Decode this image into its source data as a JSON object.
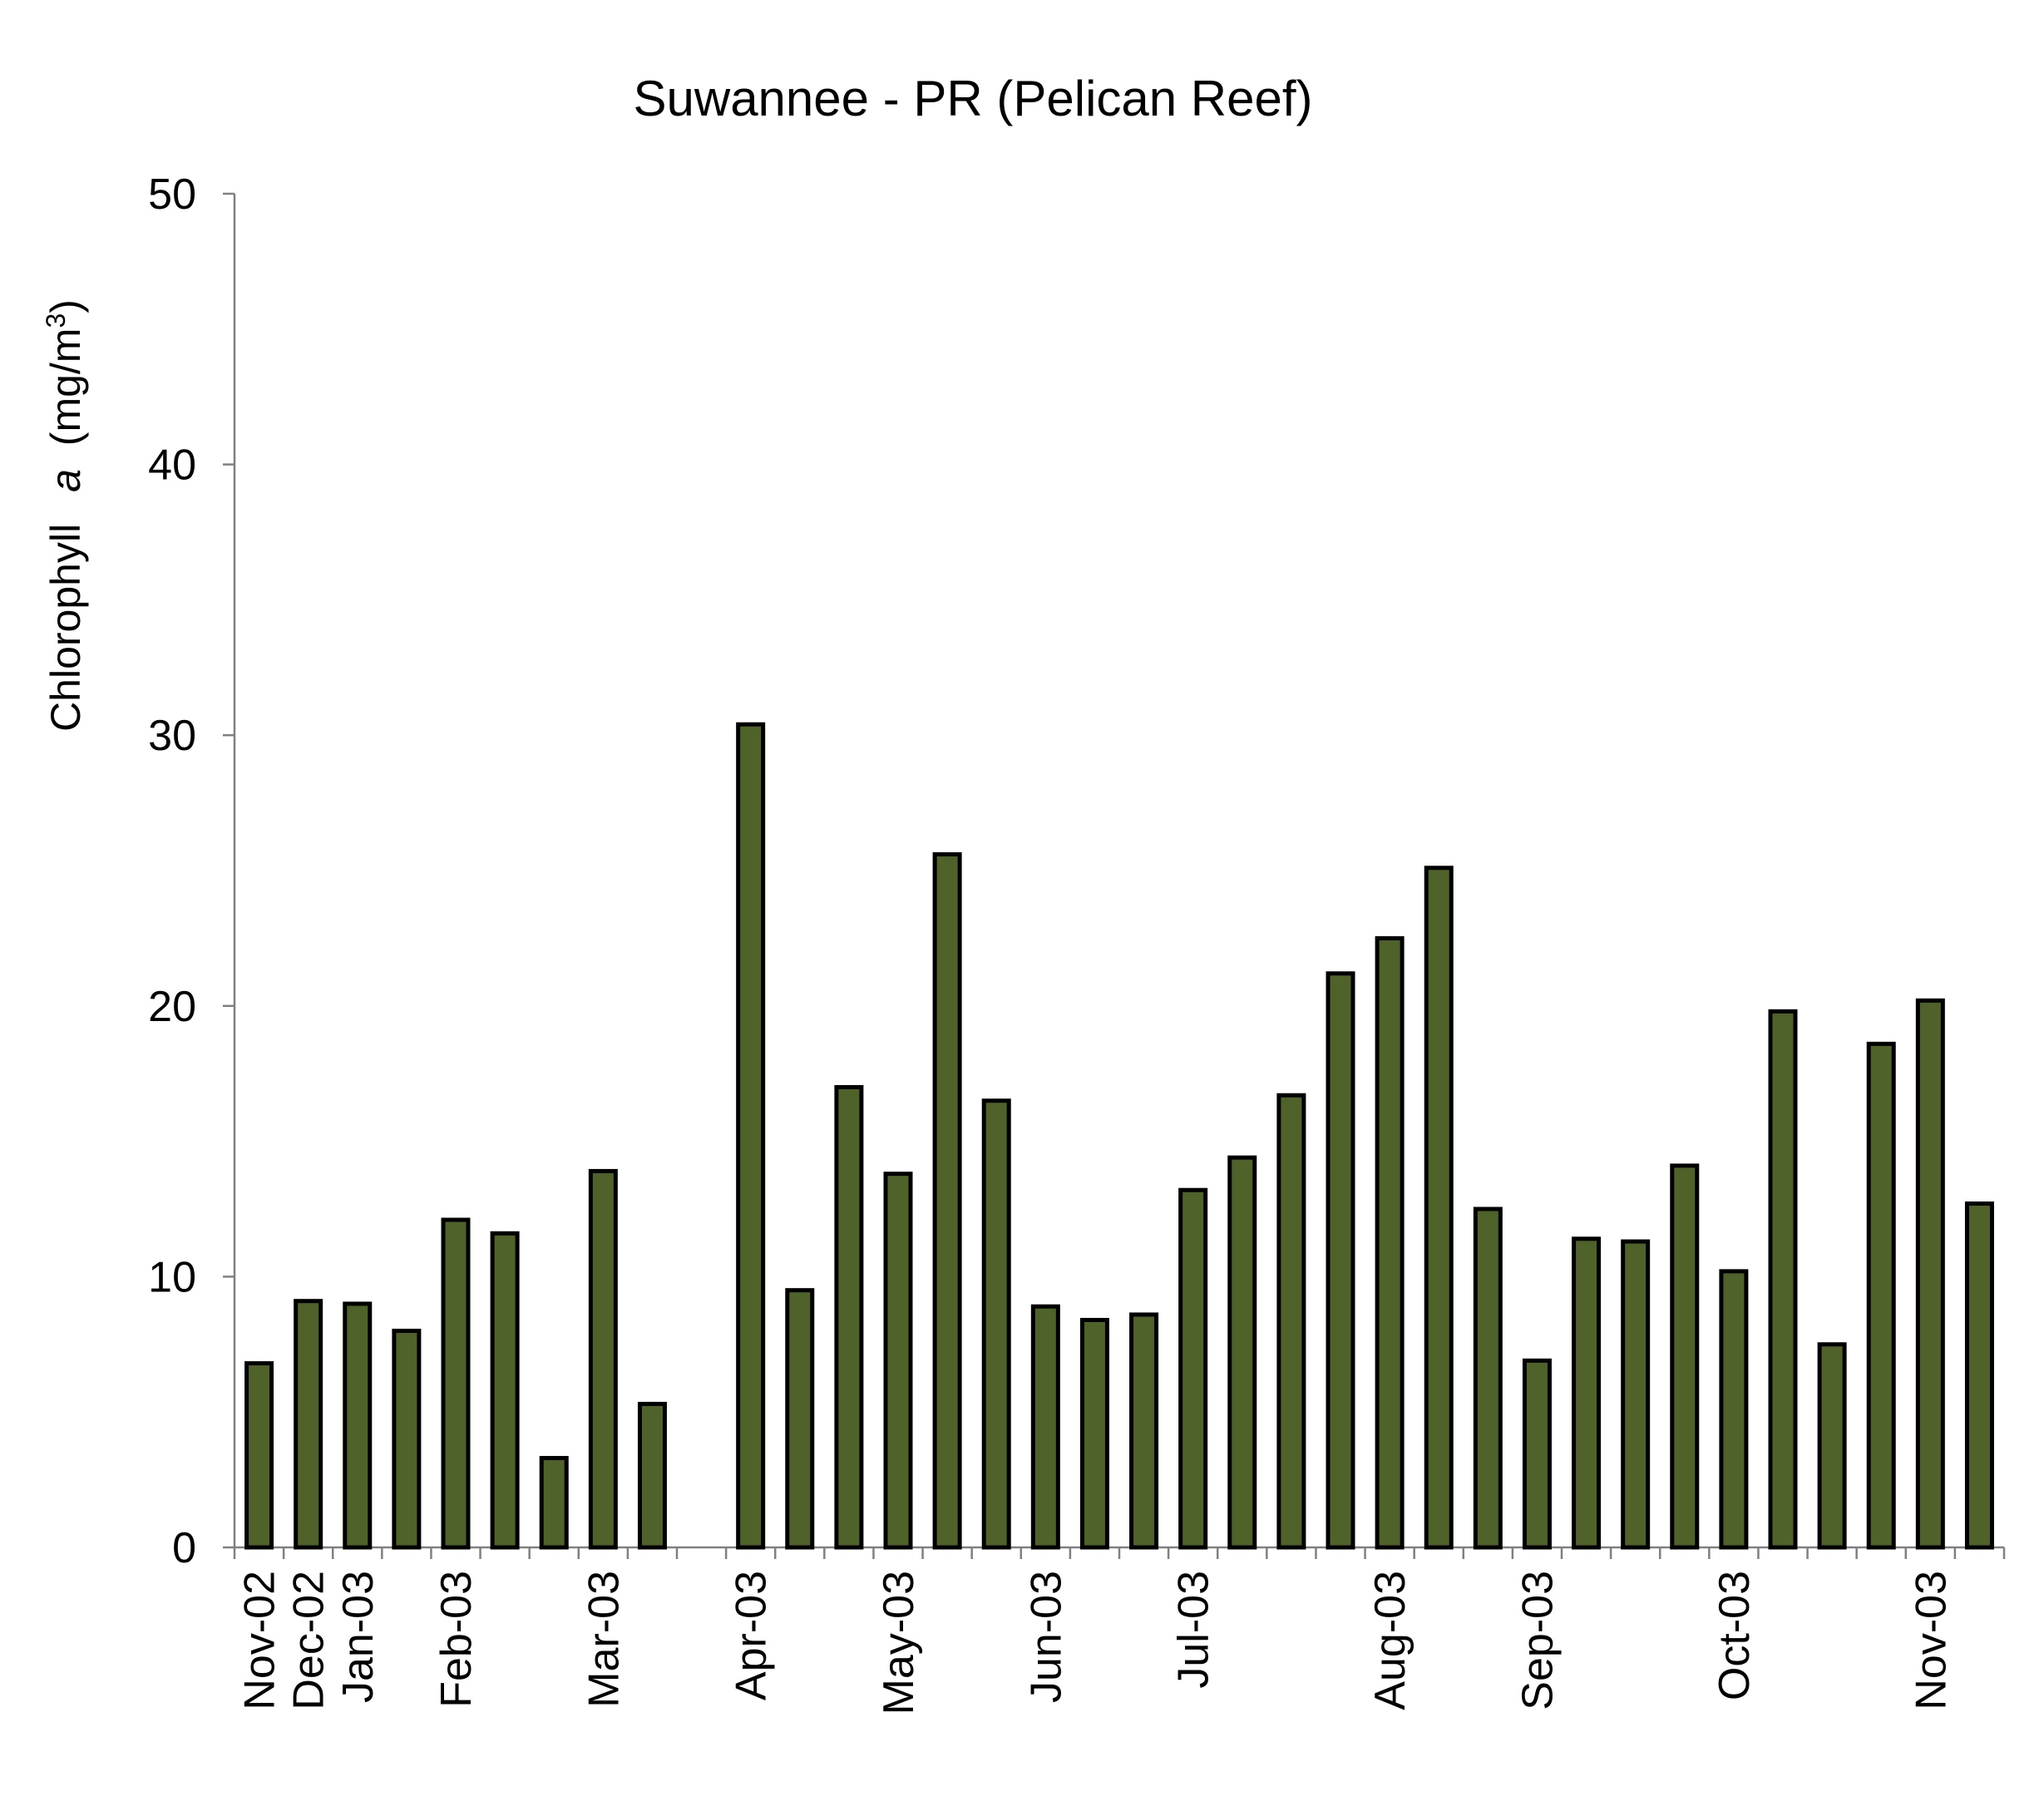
{
  "chart_data": {
    "type": "bar",
    "title": "Suwannee - PR (Pelican Reef)",
    "ylabel": {
      "prefix": "Chlorophyll",
      "italic": "a",
      "unit_start": "(mg/m",
      "sup": "3",
      "unit_end": ")"
    },
    "ylim": [
      0,
      50
    ],
    "yticks": [
      0,
      10,
      20,
      30,
      40,
      50
    ],
    "grid": false,
    "colors": {
      "bar_fill": "#4f622a",
      "bar_stroke": "#000000",
      "axis": "#808080"
    },
    "slots": 36,
    "values": [
      6.8,
      9.1,
      9.0,
      8.0,
      12.1,
      11.6,
      3.3,
      13.9,
      5.3,
      null,
      30.4,
      9.5,
      17.0,
      13.8,
      25.6,
      16.5,
      8.9,
      8.4,
      8.6,
      13.2,
      14.4,
      16.7,
      21.2,
      22.5,
      25.1,
      12.5,
      6.9,
      11.4,
      11.3,
      14.1,
      10.2,
      19.8,
      7.5,
      18.6,
      20.2,
      12.7
    ],
    "date_labels": [
      {
        "slot": 0,
        "text": "Nov-02"
      },
      {
        "slot": 1,
        "text": "Dec-02"
      },
      {
        "slot": 2,
        "text": "Jan-03"
      },
      {
        "slot": 4,
        "text": "Feb-03"
      },
      {
        "slot": 7,
        "text": "Mar-03"
      },
      {
        "slot": 10,
        "text": "Apr-03"
      },
      {
        "slot": 13,
        "text": "May-03"
      },
      {
        "slot": 16,
        "text": "Jun-03"
      },
      {
        "slot": 19,
        "text": "Jul-03"
      },
      {
        "slot": 23,
        "text": "Aug-03"
      },
      {
        "slot": 26,
        "text": "Sep-03"
      },
      {
        "slot": 30,
        "text": "Oct-03"
      },
      {
        "slot": 34,
        "text": "Nov-03"
      }
    ]
  }
}
